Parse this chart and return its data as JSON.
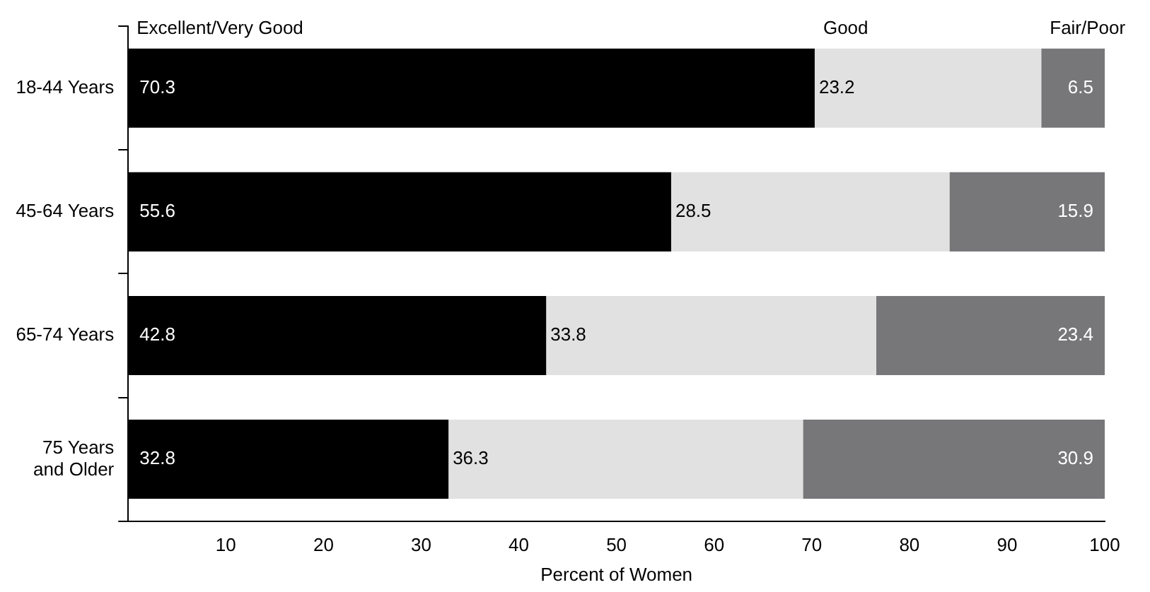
{
  "chart_data": {
    "type": "bar",
    "orientation": "horizontal",
    "stacked": true,
    "xlabel": "Percent of Women",
    "categories": [
      "18-44 Years",
      "45-64 Years",
      "65-74 Years",
      "75 Years and Older"
    ],
    "series": [
      {
        "name": "Excellent/Very Good",
        "color": "#000000",
        "values": [
          70.3,
          55.6,
          42.8,
          32.8
        ]
      },
      {
        "name": "Good",
        "color": "#e1e1e1",
        "values": [
          23.2,
          28.5,
          33.8,
          36.3
        ]
      },
      {
        "name": "Fair/Poor",
        "color": "#77777a",
        "values": [
          6.5,
          15.9,
          23.4,
          30.9
        ]
      }
    ],
    "xlim": [
      0,
      100
    ],
    "xticks": [
      10,
      20,
      30,
      40,
      50,
      60,
      70,
      80,
      90,
      100
    ],
    "data_labels": true,
    "legend": false,
    "grid": false
  }
}
